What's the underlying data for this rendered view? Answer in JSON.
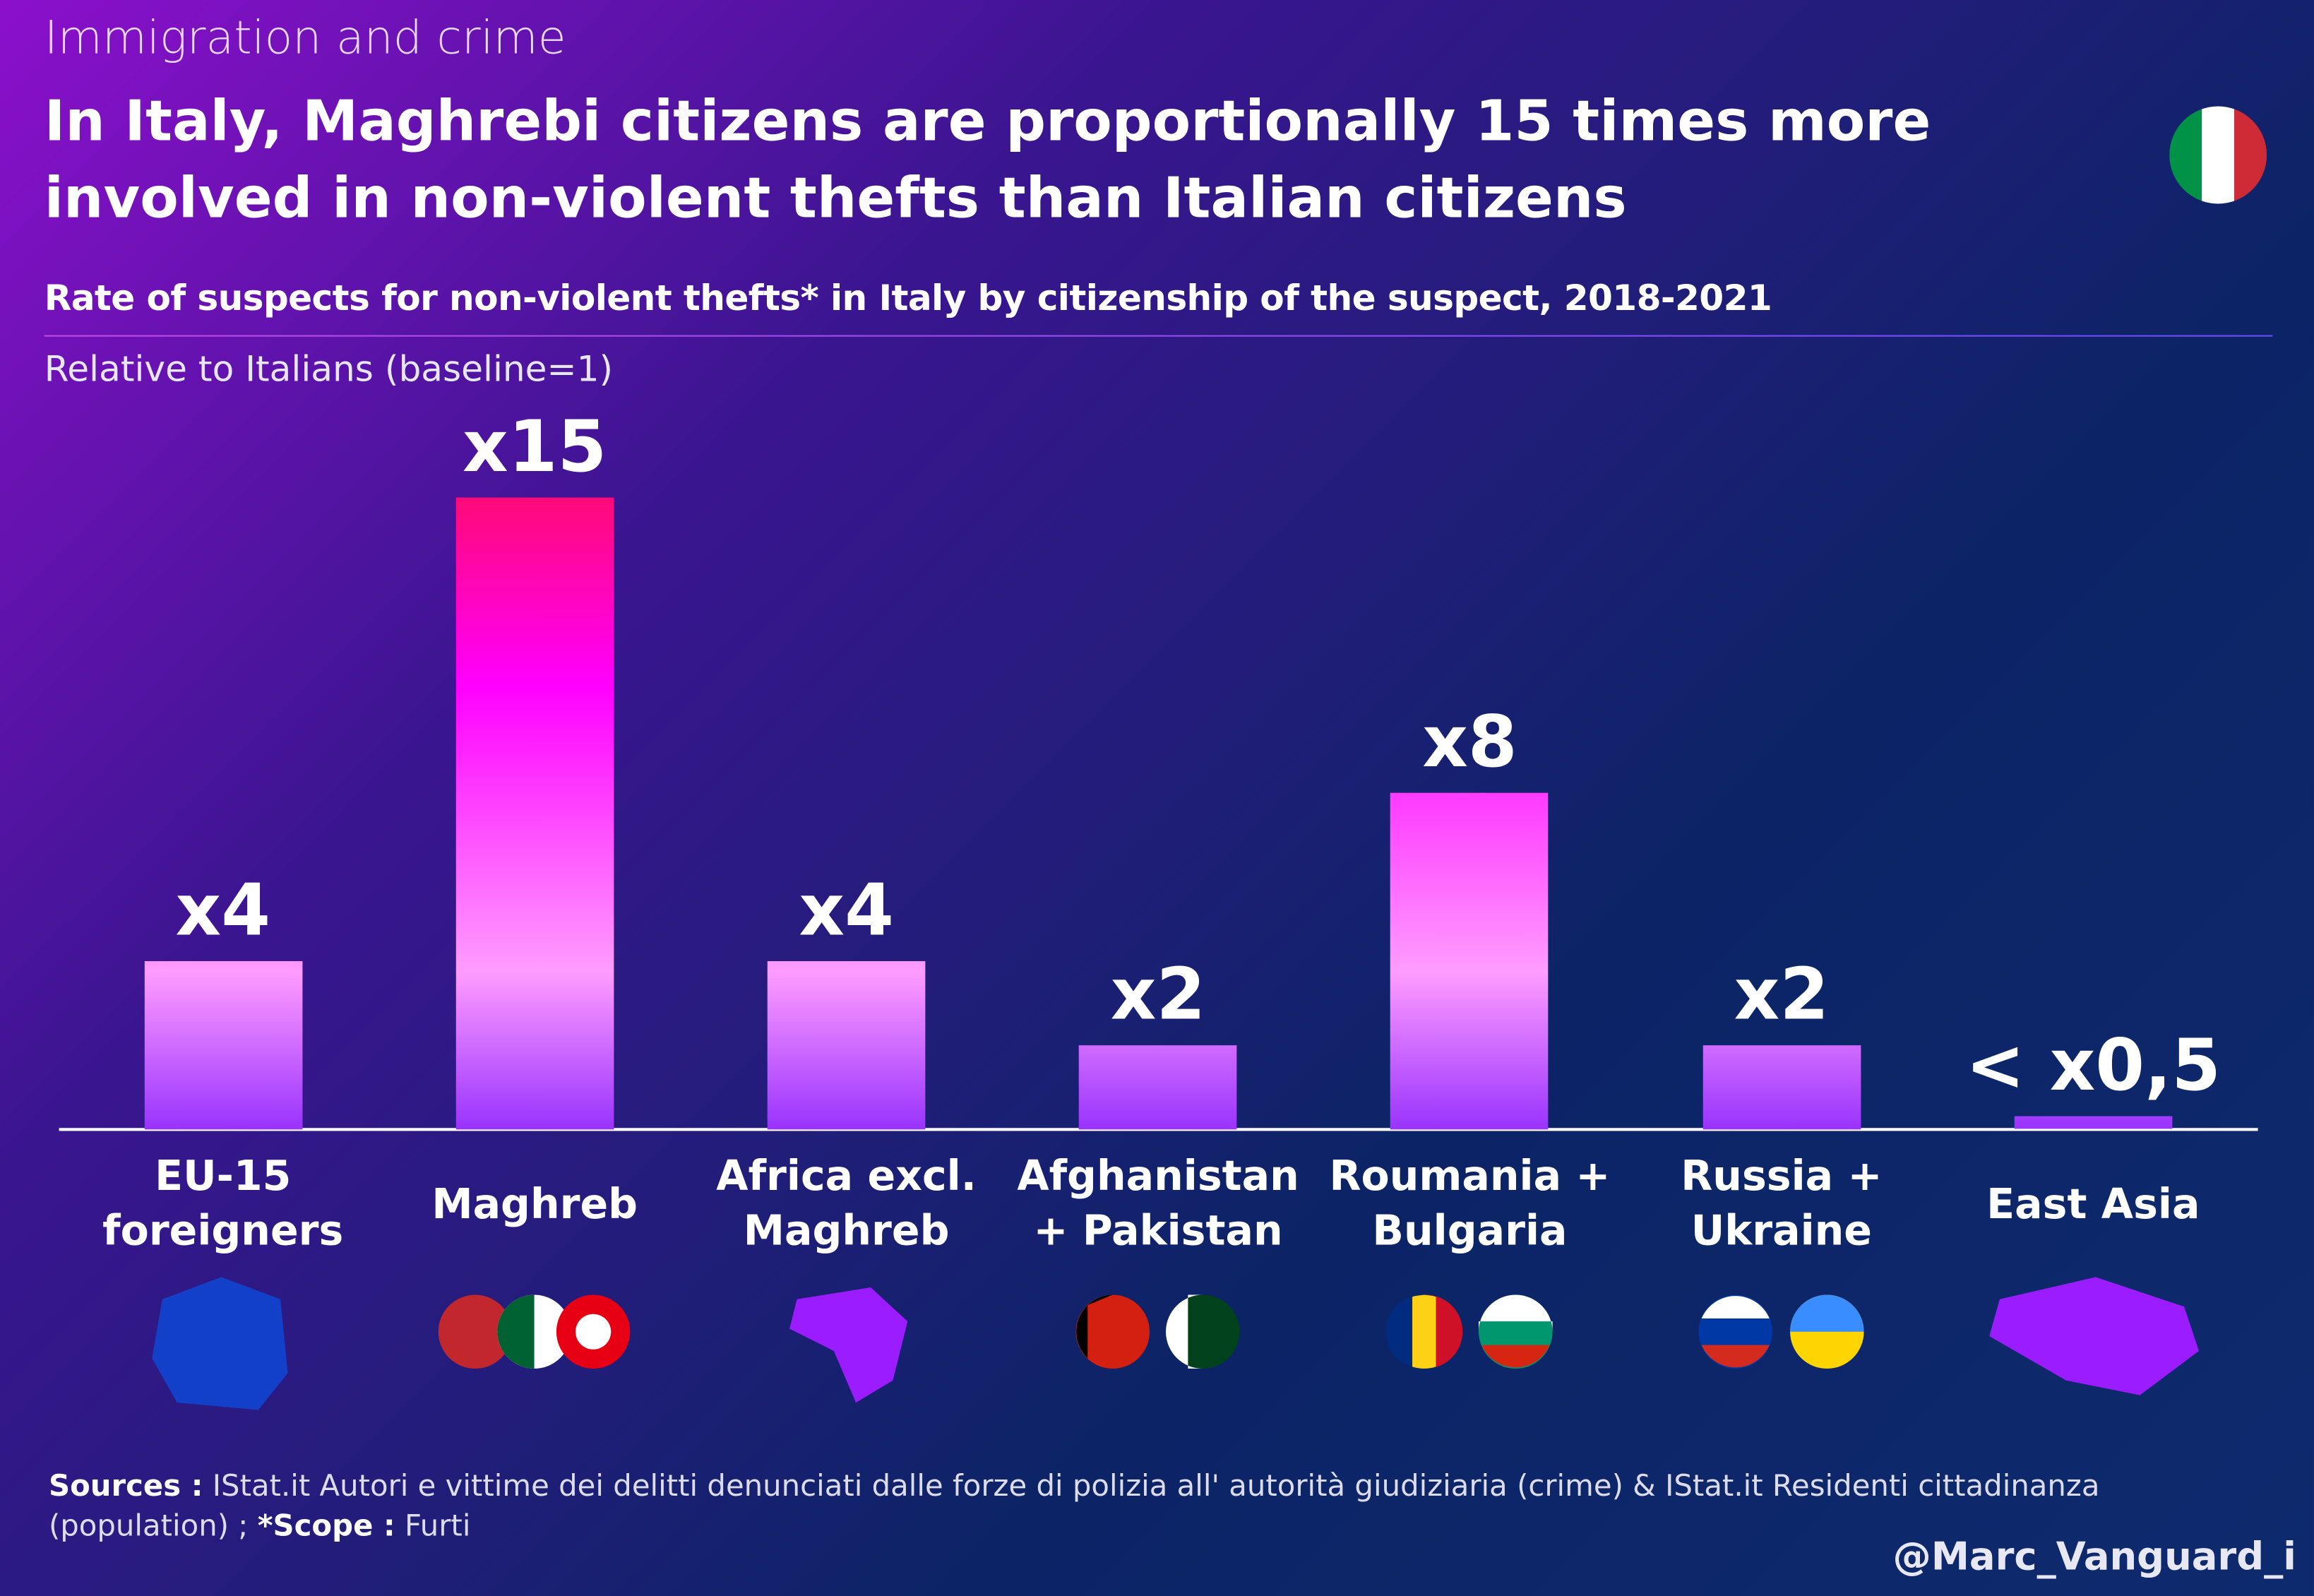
{
  "kicker": "Immigration and crime",
  "chart_data": {
    "type": "bar",
    "title": "In Italy, Maghrebi citizens are proportionally 15 times more involved in non-violent thefts than Italian citizens",
    "subtitle": "Rate of suspects for non-violent thefts* in Italy by citizenship of the suspect, 2018-2021",
    "y_note": "Relative to Italians (baseline=1)",
    "categories": [
      "EU-15 foreigners",
      "Maghreb",
      "Africa excl. Maghreb",
      "Afghanistan + Pakistan",
      "Roumania + Bulgaria",
      "Russia + Ukraine",
      "East Asia"
    ],
    "values": [
      4,
      15,
      4,
      2,
      8,
      2,
      0.3
    ],
    "value_labels": [
      "x4",
      "x15",
      "x4",
      "x2",
      "x8",
      "x2",
      "< x0,5"
    ],
    "ylim": [
      0,
      15
    ]
  },
  "footer": {
    "sources_label": "Sources :",
    "sources_text": "IStat.it Autori e vittime dei delitti denunciati dalle forze di polizia all' autorità giudiziaria (crime) & IStat.it Residenti cittadinanza (population) ;",
    "scope_label": "*Scope :",
    "scope_text": "Furti",
    "credit": "@Marc_Vanguard_i"
  }
}
